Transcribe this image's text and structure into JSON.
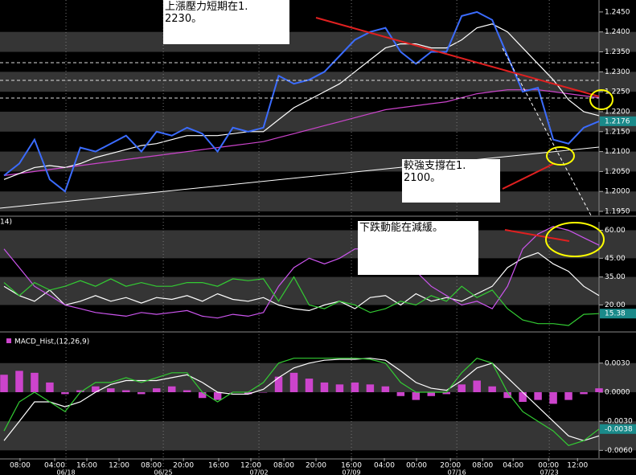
{
  "chart_data": [
    {
      "type": "line",
      "annotations": [
        "上漲壓力短期在1.\n2230。",
        "較強支撐在1.\n2100。"
      ],
      "xlim": [
        0,
        39
      ],
      "ylim": [
        1.194,
        1.248
      ],
      "yticks": [
        {
          "value": 1.195,
          "label": "1.1950"
        },
        {
          "value": 1.2,
          "label": "1.2000"
        },
        {
          "value": 1.205,
          "label": "1.2050"
        },
        {
          "value": 1.21,
          "label": "1.2100"
        },
        {
          "value": 1.215,
          "label": "1.2150"
        },
        {
          "value": 1.22,
          "label": "1.2200"
        },
        {
          "value": 1.225,
          "label": "1.2250"
        },
        {
          "value": 1.23,
          "label": "1.2300"
        },
        {
          "value": 1.235,
          "label": "1.2350"
        },
        {
          "value": 1.24,
          "label": "1.2400"
        },
        {
          "value": 1.245,
          "label": "1.2450"
        }
      ],
      "series": [
        {
          "color": "#cc44cc",
          "values": [
            1.204,
            1.2045,
            1.205,
            1.2055,
            1.206,
            1.2065,
            1.207,
            1.2075,
            1.208,
            1.2085,
            1.209,
            1.2095,
            1.21,
            1.2105,
            1.211,
            1.2115,
            1.212,
            1.2125,
            1.2135,
            1.2145,
            1.2155,
            1.2165,
            1.2175,
            1.2185,
            1.2195,
            1.2205,
            1.221,
            1.2215,
            1.222,
            1.2225,
            1.2235,
            1.2245,
            1.225,
            1.2255,
            1.2255,
            1.2255,
            1.225,
            1.2245,
            1.224,
            1.2235
          ]
        },
        {
          "color": "#ffffff",
          "values": [
            1.203,
            1.2045,
            1.206,
            1.2065,
            1.206,
            1.207,
            1.2085,
            1.2095,
            1.2105,
            1.2115,
            1.212,
            1.213,
            1.214,
            1.214,
            1.214,
            1.2145,
            1.215,
            1.215,
            1.218,
            1.221,
            1.223,
            1.225,
            1.227,
            1.23,
            1.233,
            1.236,
            1.237,
            1.237,
            1.236,
            1.236,
            1.238,
            1.241,
            1.242,
            1.24,
            1.236,
            1.232,
            1.228,
            1.223,
            1.22,
            1.219
          ]
        },
        {
          "color": "#3b6cff",
          "values": [
            1.204,
            1.207,
            1.213,
            1.203,
            1.2,
            1.211,
            1.21,
            1.212,
            1.214,
            1.21,
            1.215,
            1.214,
            1.216,
            1.2145,
            1.21,
            1.216,
            1.215,
            1.216,
            1.229,
            1.227,
            1.228,
            1.23,
            1.234,
            1.238,
            1.24,
            1.241,
            1.235,
            1.232,
            1.235,
            1.235,
            1.244,
            1.245,
            1.243,
            1.234,
            1.225,
            1.226,
            1.213,
            1.212,
            1.216,
            1.2176
          ]
        }
      ]
    },
    {
      "type": "line",
      "label": "14)",
      "annotations": [
        "下跌動能在減緩。"
      ],
      "xlim": [
        0,
        39
      ],
      "ylim": [
        6,
        64.5
      ],
      "yticks": [
        {
          "value": 20,
          "label": "20.00"
        },
        {
          "value": 35,
          "label": "35.00"
        },
        {
          "value": 45,
          "label": "45.00"
        },
        {
          "value": 60,
          "label": "60.00"
        }
      ],
      "series": [
        {
          "color": "#ffffff",
          "values": [
            30,
            25,
            22,
            28,
            20,
            22,
            25,
            22,
            24,
            21,
            24,
            23,
            25,
            22,
            26,
            23,
            22,
            24,
            20,
            18,
            17,
            20,
            22,
            18,
            24,
            25,
            20,
            26,
            22,
            24,
            22,
            26,
            30,
            40,
            45,
            48,
            42,
            38,
            30,
            25
          ]
        },
        {
          "color": "#cc55ee",
          "values": [
            50,
            40,
            30,
            25,
            20,
            18,
            16,
            15,
            14,
            16,
            15,
            16,
            17,
            14,
            13,
            15,
            14,
            16,
            30,
            40,
            45,
            42,
            45,
            50,
            50,
            52,
            48,
            38,
            30,
            25,
            20,
            22,
            18,
            30,
            50,
            58,
            62,
            60,
            56,
            52
          ]
        },
        {
          "color": "#33cc33",
          "values": [
            32,
            25,
            32,
            28,
            30,
            33,
            30,
            34,
            30,
            32,
            30,
            30,
            32,
            32,
            30,
            34,
            33,
            34,
            22,
            35,
            20,
            18,
            22,
            20,
            16,
            18,
            22,
            20,
            25,
            22,
            30,
            24,
            28,
            18,
            12,
            10,
            10,
            9,
            15,
            15.38
          ]
        }
      ]
    },
    {
      "type": "bar",
      "xlim": [
        0,
        39
      ],
      "ylim": [
        -0.0068,
        0.0058
      ],
      "yticks": [
        {
          "value": -0.006,
          "label": "-0.0060"
        },
        {
          "value": -0.003,
          "label": "-0.0030"
        },
        {
          "value": 0,
          "label": "0.0000"
        },
        {
          "value": 0.003,
          "label": "0.0030"
        }
      ],
      "xticks": [
        {
          "value": 1.05,
          "label": "08:00"
        },
        {
          "value": 3.32,
          "label": "04:00"
        },
        {
          "value": 5.43,
          "label": "16:00"
        },
        {
          "value": 7.54,
          "label": "12:00"
        },
        {
          "value": 9.65,
          "label": "08:00"
        },
        {
          "value": 11.76,
          "label": "20:00"
        },
        {
          "value": 14.07,
          "label": "16:00"
        },
        {
          "value": 16.18,
          "label": "12:00"
        },
        {
          "value": 18.34,
          "label": "08:00"
        },
        {
          "value": 20.45,
          "label": "20:00"
        },
        {
          "value": 22.77,
          "label": "16:00"
        },
        {
          "value": 24.93,
          "label": "04:00"
        },
        {
          "value": 27.04,
          "label": "00:00"
        },
        {
          "value": 29.26,
          "label": "20:00"
        },
        {
          "value": 31.37,
          "label": "08:00"
        },
        {
          "value": 33.37,
          "label": "04:00"
        },
        {
          "value": 35.69,
          "label": "00:00"
        },
        {
          "value": 37.59,
          "label": "12:00"
        }
      ],
      "date_ticks": [
        {
          "value": 4.06,
          "label": "06/18"
        },
        {
          "value": 10.44,
          "label": "06/25"
        },
        {
          "value": 16.71,
          "label": "07/02"
        },
        {
          "value": 22.77,
          "label": "07/09"
        },
        {
          "value": 29.68,
          "label": "07/16"
        },
        {
          "value": 35.74,
          "label": "07/23"
        }
      ],
      "series": [
        {
          "name": "MACD_Hist,(12,26,9)",
          "type": "bar",
          "color": "#cc44cc",
          "values": [
            0.0018,
            0.0022,
            0.002,
            0.001,
            -0.0002,
            0.0002,
            0.0006,
            0.0004,
            0.0002,
            -0.0002,
            0.0004,
            0.0006,
            0.0002,
            -0.0006,
            -0.0008,
            0.0,
            -0.0002,
            0.0,
            0.0016,
            0.002,
            0.0014,
            0.001,
            0.0008,
            0.001,
            0.0008,
            0.0006,
            -0.0004,
            -0.0008,
            -0.0004,
            -0.0002,
            0.0008,
            0.0012,
            0.0006,
            -0.0006,
            -0.001,
            -0.0008,
            -0.0012,
            -0.0008,
            -0.0002,
            0.0004
          ]
        },
        {
          "type": "line",
          "color": "#ffffff",
          "values": [
            -0.005,
            -0.003,
            -0.001,
            -0.001,
            -0.0015,
            -0.001,
            0.0,
            0.0008,
            0.0012,
            0.0012,
            0.0012,
            0.0015,
            0.0018,
            0.001,
            0.0,
            -0.0002,
            -0.0002,
            0.0003,
            0.0015,
            0.0025,
            0.003,
            0.0033,
            0.0034,
            0.0034,
            0.0035,
            0.0033,
            0.0022,
            0.001,
            0.0004,
            0.0002,
            0.0012,
            0.0025,
            0.003,
            0.0015,
            0.0,
            -0.0015,
            -0.003,
            -0.0045,
            -0.005,
            -0.0045
          ]
        },
        {
          "type": "line",
          "color": "#33cc33",
          "values": [
            -0.004,
            -0.001,
            0.0,
            -0.001,
            -0.002,
            0.0,
            0.001,
            0.001,
            0.0015,
            0.001,
            0.0015,
            0.002,
            0.002,
            0.0,
            -0.001,
            0.0,
            0.0,
            0.001,
            0.003,
            0.0035,
            0.0035,
            0.0035,
            0.0035,
            0.0035,
            0.0034,
            0.003,
            0.001,
            0.0,
            0.0,
            0.0,
            0.002,
            0.0035,
            0.003,
            0.0,
            -0.002,
            -0.003,
            -0.004,
            -0.0055,
            -0.005,
            -0.0038
          ]
        }
      ]
    }
  ]
}
